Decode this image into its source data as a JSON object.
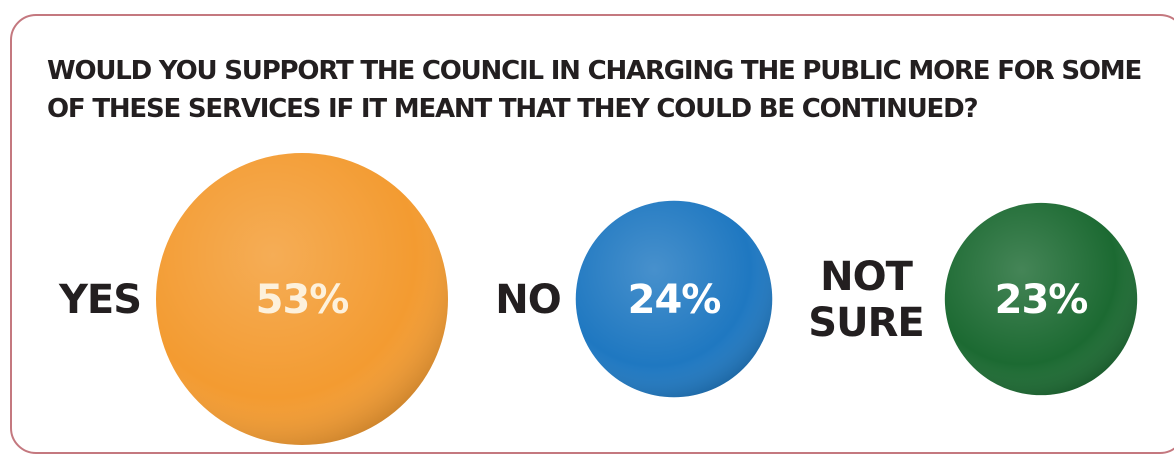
{
  "chart_data": {
    "type": "bubble",
    "title": "WOULD YOU SUPPORT THE COUNCIL IN CHARGING THE PUBLIC MORE FOR SOME\nOF THESE SERVICES IF IT MEANT THAT THEY COULD BE CONTINUED?",
    "categories": [
      {
        "name": [
          "YES"
        ],
        "value": 53,
        "value_label": "53%",
        "color": "#f39b31",
        "text_color": "#fdf1dc"
      },
      {
        "name": [
          "NO"
        ],
        "value": 24,
        "value_label": "24%",
        "color": "#1f78c1",
        "text_color": "#ffffff"
      },
      {
        "name": [
          "NOT",
          "SURE"
        ],
        "value": 23,
        "value_label": "23%",
        "color": "#1c6a32",
        "text_color": "#ffffff"
      }
    ],
    "unit": "%"
  },
  "colors": {
    "border": "#c4787f",
    "text": "#231f20"
  }
}
